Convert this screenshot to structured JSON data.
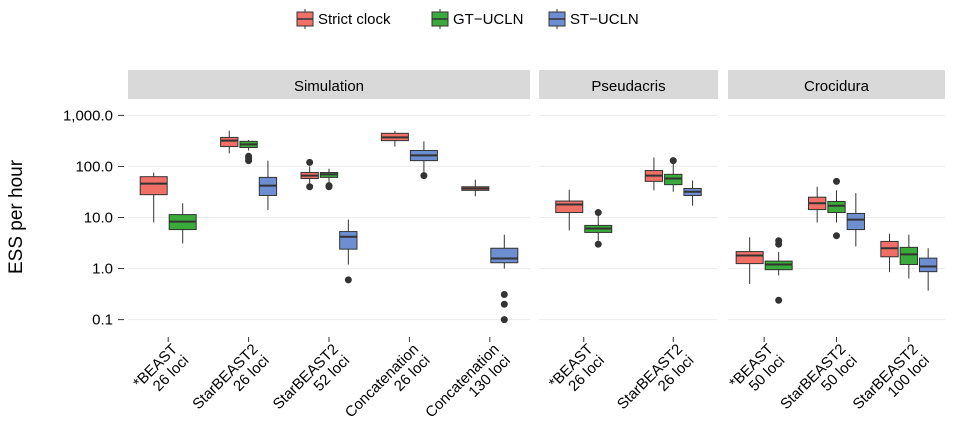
{
  "chart_data": {
    "type": "box",
    "ylabel": "ESS per hour",
    "log": true,
    "grid": true,
    "legend": "top",
    "ylim": [
      0.05,
      2000
    ],
    "yticks": [
      0.1,
      {
        "value": 1,
        "label": "1.0"
      },
      {
        "value": 10,
        "label": "10.0"
      },
      {
        "value": 100,
        "label": "100.0"
      },
      {
        "value": 1000,
        "label": "1,000.0"
      }
    ],
    "series": [
      {
        "name": "Strict clock",
        "color": "#f07068"
      },
      {
        "name": "GT−UCLN",
        "color": "#3aaa3a"
      },
      {
        "name": "ST−UCLN",
        "color": "#6d8fd2"
      }
    ],
    "facets": [
      {
        "title": "Simulation",
        "categories": [
          [
            "*BEAST",
            "26 loci"
          ],
          [
            "StarBEAST2",
            "26 loci"
          ],
          [
            "StarBEAST2",
            "52 loci"
          ],
          [
            "Concatenation",
            "26 loci"
          ],
          [
            "Concatenation",
            "130 loci"
          ]
        ],
        "values": [
          [
            {
              "whislo": 8,
              "q1": 28,
              "med": 46,
              "q3": 63,
              "whishi": 76
            },
            {
              "whislo": 180,
              "q1": 245,
              "med": 320,
              "q3": 370,
              "whishi": 500
            },
            {
              "whislo": 42,
              "q1": 58,
              "med": 66,
              "q3": 76,
              "whishi": 100,
              "fliers": [
                120,
                40
              ]
            },
            {
              "whislo": 245,
              "q1": 320,
              "med": 370,
              "q3": 445,
              "whishi": 500
            },
            {
              "whislo": 26,
              "q1": 34,
              "med": 37,
              "q3": 40,
              "whishi": 55
            }
          ],
          [
            {
              "whislo": 3.1,
              "q1": 5.8,
              "med": 8.3,
              "q3": 11.4,
              "whishi": 19
            },
            {
              "whislo": 205,
              "q1": 235,
              "med": 270,
              "q3": 310,
              "whishi": 330,
              "fliers": [
                158,
                130,
                145
              ]
            },
            {
              "whislo": 48,
              "q1": 61,
              "med": 70,
              "q3": 76,
              "whishi": 90,
              "fliers": [
                42,
                40
              ]
            },
            null,
            null
          ],
          [
            null,
            {
              "whislo": 14,
              "q1": 27,
              "med": 42,
              "q3": 61,
              "whishi": 130
            },
            {
              "whislo": 1.2,
              "q1": 2.4,
              "med": 4.2,
              "q3": 5.3,
              "whishi": 9.1,
              "fliers": [
                0.6
              ]
            },
            {
              "whislo": 70,
              "q1": 130,
              "med": 165,
              "q3": 205,
              "whishi": 310,
              "fliers": [
                66
              ]
            },
            {
              "whislo": 1.0,
              "q1": 1.3,
              "med": 1.57,
              "q3": 2.5,
              "whishi": 4.6,
              "fliers": [
                0.31,
                0.2,
                0.1
              ]
            }
          ]
        ]
      },
      {
        "title": "Pseudacris",
        "categories": [
          [
            "*BEAST",
            "26 loci"
          ],
          [
            "StarBEAST2",
            "26 loci"
          ]
        ],
        "values": [
          [
            {
              "whislo": 5.6,
              "q1": 12.5,
              "med": 18,
              "q3": 21,
              "whishi": 35
            },
            {
              "whislo": 34,
              "q1": 51,
              "med": 66,
              "q3": 83,
              "whishi": 150
            }
          ],
          [
            {
              "whislo": 3.5,
              "q1": 5.1,
              "med": 6.1,
              "q3": 7,
              "whishi": 11,
              "fliers": [
                12.5,
                3
              ]
            },
            {
              "whislo": 32,
              "q1": 44,
              "med": 58,
              "q3": 70,
              "whishi": 115,
              "fliers": [
                130
              ]
            }
          ],
          [
            null,
            {
              "whislo": 17,
              "q1": 27,
              "med": 32,
              "q3": 37,
              "whishi": 53
            }
          ]
        ]
      },
      {
        "title": "Crocidura",
        "categories": [
          [
            "*BEAST",
            "50 loci"
          ],
          [
            "StarBEAST2",
            "50 loci"
          ],
          [
            "StarBEAST2",
            "100 loci"
          ]
        ],
        "values": [
          [
            {
              "whislo": 0.5,
              "q1": 1.25,
              "med": 1.8,
              "q3": 2.15,
              "whishi": 4.1
            },
            {
              "whislo": 8,
              "q1": 14.3,
              "med": 19,
              "q3": 25,
              "whishi": 40
            },
            {
              "whislo": 0.85,
              "q1": 1.7,
              "med": 2.5,
              "q3": 3.4,
              "whishi": 4.8
            }
          ],
          [
            {
              "whislo": 0.73,
              "q1": 0.95,
              "med": 1.2,
              "q3": 1.4,
              "whishi": 2.1,
              "fliers": [
                3.5,
                3,
                0.24
              ]
            },
            {
              "whislo": 8,
              "q1": 12.5,
              "med": 17,
              "q3": 20.6,
              "whishi": 34,
              "fliers": [
                51,
                4.4
              ]
            },
            {
              "whislo": 0.64,
              "q1": 1.2,
              "med": 1.9,
              "q3": 2.6,
              "whishi": 4.6
            }
          ],
          [
            null,
            {
              "whislo": 2.7,
              "q1": 5.8,
              "med": 9.1,
              "q3": 12,
              "whishi": 30
            },
            {
              "whislo": 0.37,
              "q1": 0.87,
              "med": 1.1,
              "q3": 1.6,
              "whishi": 2.5
            }
          ]
        ]
      }
    ]
  }
}
